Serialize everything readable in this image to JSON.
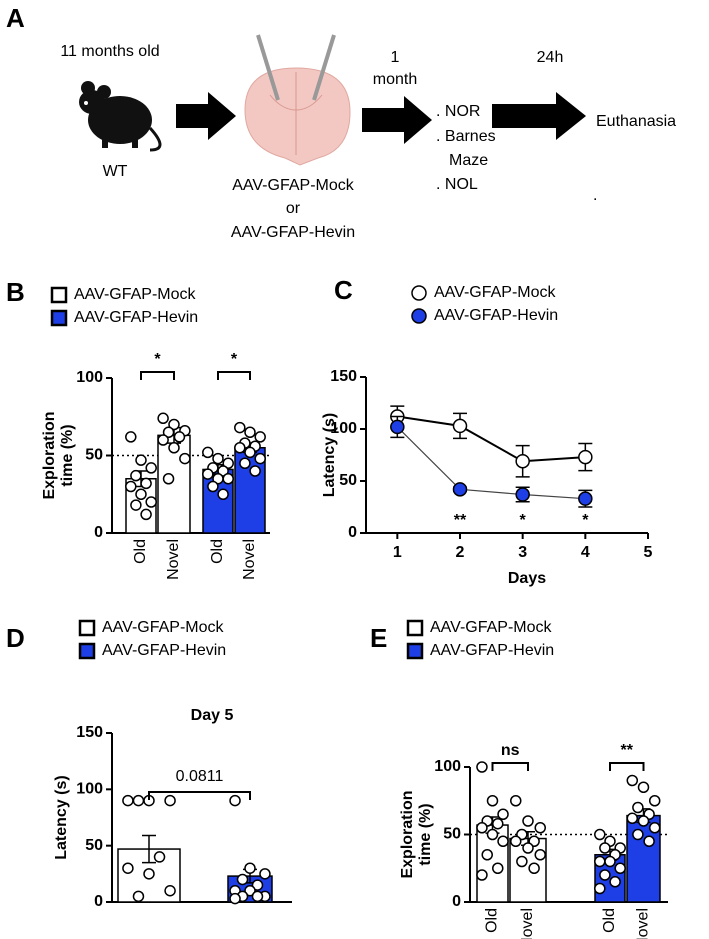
{
  "panel_a": {
    "label": "A",
    "age": "11 months old",
    "genotype": "WT",
    "treatment": [
      "AAV-GFAP-Mock",
      "or",
      "AAV-GFAP-Hevin"
    ],
    "interval_1": [
      "1",
      "month"
    ],
    "tests": [
      ". NOR",
      ". Barnes",
      "Maze",
      ". NOL"
    ],
    "interval_2": "24h",
    "endpoint": "Euthanasia",
    "stray_mark": "."
  },
  "chart_data": [
    {
      "type": "bar",
      "panel_label": "B",
      "ylabel": [
        "Exploration",
        "time (%)"
      ],
      "categories": [
        "Old",
        "Novel"
      ],
      "ylim": [
        0,
        100
      ],
      "yticks": [
        0,
        50,
        100
      ],
      "reference_line": 50,
      "legend": "top-left",
      "series": [
        {
          "name": "AAV-GFAP-Mock",
          "color": "#ffffff",
          "values": [
            35,
            63
          ],
          "errors": [
            5,
            5
          ],
          "points": [
            [
              62,
              47,
              42,
              37,
              32,
              30,
              25,
              20,
              18,
              12
            ],
            [
              74,
              70,
              66,
              65,
              62,
              60,
              55,
              48,
              35
            ]
          ],
          "significance": "*"
        },
        {
          "name": "AAV-GFAP-Hevin",
          "color": "#1f3fe6",
          "values": [
            41,
            55
          ],
          "errors": [
            3,
            3
          ],
          "points": [
            [
              52,
              48,
              45,
              42,
              40,
              38,
              35,
              35,
              30,
              25
            ],
            [
              68,
              65,
              62,
              58,
              56,
              55,
              52,
              48,
              45,
              40
            ]
          ],
          "significance": "*"
        }
      ]
    },
    {
      "type": "line",
      "panel_label": "C",
      "ylabel": "Latency (s)",
      "xlabel": "Days",
      "x": [
        1,
        2,
        3,
        4
      ],
      "xlim": [
        0.5,
        5
      ],
      "xticks": [
        1,
        2,
        3,
        4,
        5
      ],
      "ylim": [
        0,
        150
      ],
      "yticks": [
        0,
        50,
        100,
        150
      ],
      "legend": "top-left",
      "series": [
        {
          "name": "AAV-GFAP-Mock",
          "color": "#ffffff",
          "values": [
            112,
            103,
            69,
            73
          ],
          "errors": [
            10,
            12,
            15,
            13
          ]
        },
        {
          "name": "AAV-GFAP-Hevin",
          "color": "#1f3fe6",
          "values": [
            102,
            42,
            37,
            33
          ],
          "errors": [
            10,
            2,
            7,
            8
          ]
        }
      ],
      "significance": [
        {
          "x": 2,
          "label": "**"
        },
        {
          "x": 3,
          "label": "*"
        },
        {
          "x": 4,
          "label": "*"
        }
      ]
    },
    {
      "type": "bar",
      "panel_label": "D",
      "title": "Day 5",
      "ylabel": "Latency (s)",
      "ylim": [
        0,
        150
      ],
      "yticks": [
        0,
        50,
        100,
        150
      ],
      "legend": "top-left",
      "comparison_label": "0.0811",
      "series": [
        {
          "name": "AAV-GFAP-Mock",
          "color": "#ffffff",
          "values": [
            47
          ],
          "errors": [
            12
          ],
          "points": [
            [
              90,
              90,
              90,
              90,
              40,
              30,
              25,
              10,
              5
            ]
          ]
        },
        {
          "name": "AAV-GFAP-Hevin",
          "color": "#1f3fe6",
          "values": [
            23
          ],
          "errors": [
            6
          ],
          "points": [
            [
              90,
              30,
              25,
              20,
              15,
              10,
              10,
              5,
              5,
              5,
              3
            ]
          ]
        }
      ]
    },
    {
      "type": "bar",
      "panel_label": "E",
      "ylabel": [
        "Exploration",
        "time (%)"
      ],
      "categories": [
        "Old",
        "Novel"
      ],
      "ylim": [
        0,
        100
      ],
      "yticks": [
        0,
        50,
        100
      ],
      "reference_line": 50,
      "legend": "top-left",
      "series": [
        {
          "name": "AAV-GFAP-Mock",
          "color": "#ffffff",
          "values": [
            57,
            47
          ],
          "errors": [
            6,
            5
          ],
          "points": [
            [
              100,
              75,
              65,
              60,
              58,
              55,
              50,
              45,
              35,
              25,
              20
            ],
            [
              75,
              60,
              55,
              50,
              45,
              45,
              40,
              35,
              30,
              25
            ]
          ],
          "significance": "ns"
        },
        {
          "name": "AAV-GFAP-Hevin",
          "color": "#1f3fe6",
          "values": [
            35,
            64
          ],
          "errors": [
            4,
            5
          ],
          "points": [
            [
              50,
              45,
              40,
              40,
              35,
              30,
              30,
              25,
              20,
              15,
              10
            ],
            [
              90,
              85,
              75,
              70,
              65,
              62,
              60,
              55,
              50,
              45
            ]
          ],
          "significance": "**"
        }
      ]
    }
  ]
}
